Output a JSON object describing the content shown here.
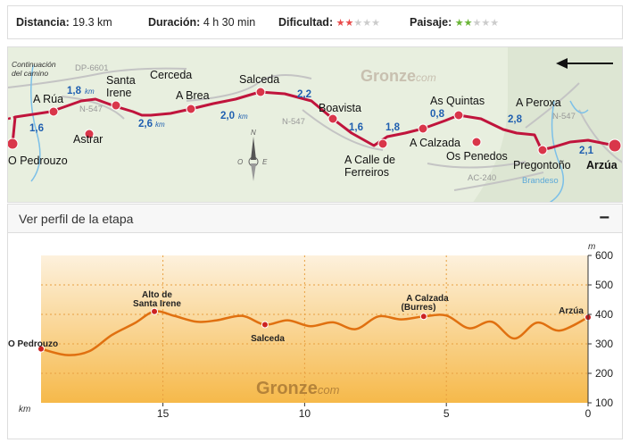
{
  "stats": {
    "distance_label": "Distancia:",
    "distance_value": "19.3 km",
    "duration_label": "Duración:",
    "duration_value": "4 h 30 min",
    "difficulty_label": "Dificultad:",
    "difficulty_level": 2,
    "difficulty_max": 5,
    "landscape_label": "Paisaje:",
    "landscape_level": 2,
    "landscape_max": 5,
    "difficulty_color": "#e84a4a",
    "landscape_color": "#6ab536",
    "empty_star_color": "#cccccc"
  },
  "map": {
    "brand": "Gronze",
    "brand_suffix": "com",
    "continuation_note_1": "Continuación",
    "continuation_note_2": "del camino",
    "roads": [
      "DP-6601",
      "N-547",
      "N-547",
      "N-547",
      "AC-240"
    ],
    "river": "Brandeso",
    "compass": {
      "n": "N",
      "o": "O",
      "e": "E"
    },
    "places": [
      "O Pedrouzo",
      "A Rúa",
      "Astrar",
      "Santa",
      "Irene",
      "Cerceda",
      "A Brea",
      "Salceda",
      "Boavista",
      "A Calle de",
      "Ferreiros",
      "A Calzada",
      "As Quintas",
      "Os Penedos",
      "A Peroxa",
      "Pregontoño",
      "Arzúa"
    ],
    "distances": [
      "1,6",
      "1,8",
      "km",
      "2,6",
      "km",
      "2,0",
      "km",
      "2,2",
      "1,6",
      "1,8",
      "0,8",
      "2,8",
      "2,1"
    ]
  },
  "profile": {
    "header": "Ver perfil de la etapa",
    "collapse_symbol": "−",
    "brand": "Gronze",
    "brand_suffix": "com",
    "y_unit": "m",
    "x_unit": "km",
    "y_ticks": [
      "600",
      "500",
      "400",
      "300",
      "200",
      "100"
    ],
    "x_ticks": [
      "15",
      "10",
      "5",
      "0"
    ],
    "labels": {
      "start": "O Pedrouzo",
      "santa_irene_1": "Alto de",
      "santa_irene_2": "Santa Irene",
      "salceda": "Salceda",
      "calzada_1": "A Calzada",
      "calzada_2": "(Burres)",
      "arzua": "Arzúa"
    },
    "line_color": "#e07010",
    "point_color": "#cc2222"
  },
  "chart_data": {
    "type": "area",
    "title": "",
    "xlabel": "km",
    "ylabel": "m",
    "xlim": [
      19.3,
      0
    ],
    "ylim": [
      100,
      600
    ],
    "x": [
      19.3,
      18.4,
      17.6,
      16.8,
      16.0,
      15.3,
      14.6,
      13.8,
      13.1,
      12.2,
      11.4,
      10.6,
      9.8,
      9.0,
      8.2,
      7.4,
      6.6,
      5.8,
      5.0,
      4.2,
      3.4,
      2.6,
      1.8,
      1.0,
      0.0
    ],
    "y": [
      283,
      262,
      275,
      330,
      370,
      410,
      395,
      375,
      380,
      395,
      365,
      380,
      360,
      373,
      350,
      393,
      383,
      393,
      396,
      353,
      375,
      318,
      372,
      345,
      390
    ],
    "points": [
      {
        "label": "O Pedrouzo",
        "x": 19.3,
        "y": 283
      },
      {
        "label": "Alto de Santa Irene",
        "x": 15.3,
        "y": 410
      },
      {
        "label": "Salceda",
        "x": 11.4,
        "y": 365
      },
      {
        "label": "A Calzada (Burres)",
        "x": 5.8,
        "y": 393
      },
      {
        "label": "Arzúa",
        "x": 0.0,
        "y": 390
      }
    ]
  }
}
